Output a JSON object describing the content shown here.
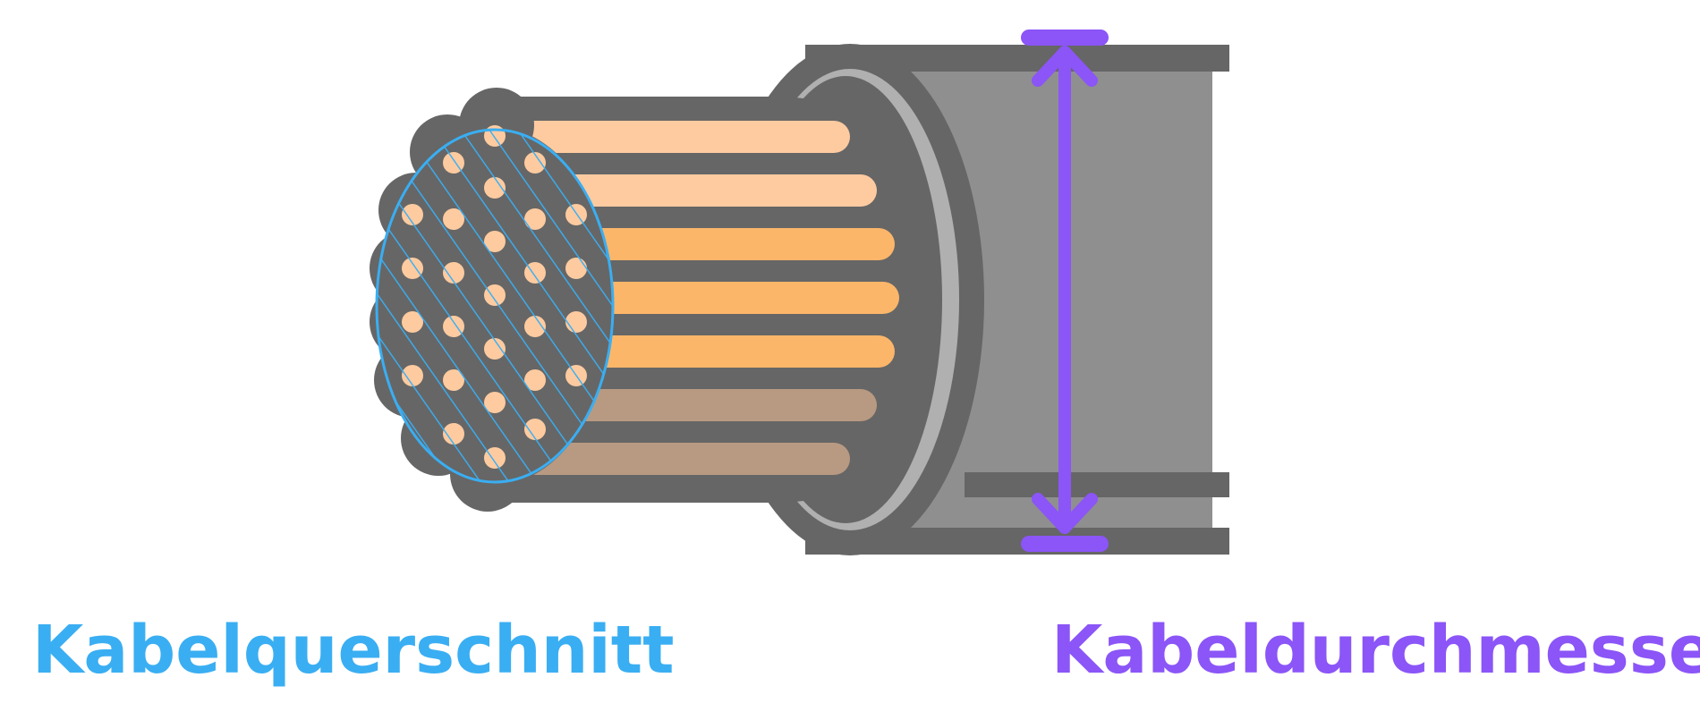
{
  "labels": {
    "cross_section": "Kabelquerschnitt",
    "diameter": "Kabeldurchmesser"
  },
  "colors": {
    "cross_section": "#3aaef2",
    "diameter": "#8b55f7",
    "outline": "#666666",
    "jacket": "#8f8f8f",
    "jacket_ring": "#b0b0b0",
    "copper_light": "#fecba0",
    "copper_mid": "#fcb66a",
    "copper_dark": "#b89a82"
  },
  "icons": {
    "cable": "cable-illustration",
    "hatch": "hatched-ellipse",
    "arrow": "double-headed-arrow"
  }
}
